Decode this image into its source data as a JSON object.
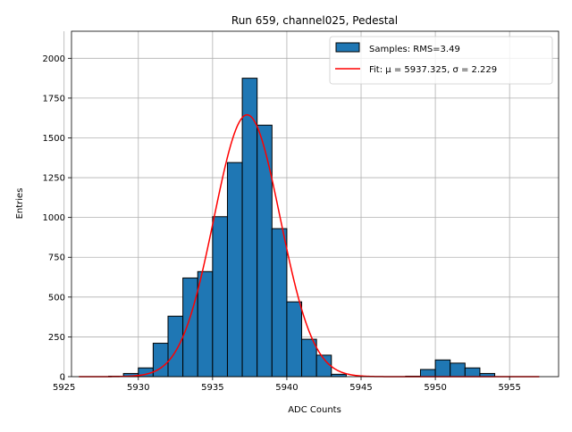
{
  "chart_data": {
    "type": "bar",
    "title": "Run 659, channel025, Pedestal",
    "xlabel": "ADC Counts",
    "ylabel": "Entries",
    "xlim": [
      5925.5,
      5958.3
    ],
    "ylim": [
      0,
      2170
    ],
    "xticks": [
      5925,
      5930,
      5935,
      5940,
      5945,
      5950,
      5955
    ],
    "yticks": [
      0,
      250,
      500,
      750,
      1000,
      1250,
      1500,
      1750,
      2000
    ],
    "grid": true,
    "legend_position": "top-right",
    "colors": {
      "bars": "#1f77b4",
      "bar_edge": "#000000",
      "fit": "#ff0000",
      "grid": "#b0b0b0"
    },
    "series": [
      {
        "name": "Samples: RMS=3.49",
        "type": "histogram",
        "bin_width": 1,
        "x": [
          5926,
          5927,
          5928,
          5929,
          5930,
          5931,
          5932,
          5933,
          5934,
          5935,
          5936,
          5937,
          5938,
          5939,
          5940,
          5941,
          5942,
          5943,
          5944,
          5945,
          5946,
          5947,
          5948,
          5949,
          5950,
          5951,
          5952,
          5953
        ],
        "values": [
          0,
          0,
          3,
          20,
          55,
          210,
          380,
          620,
          660,
          1005,
          1345,
          1875,
          1580,
          930,
          470,
          235,
          135,
          15,
          0,
          0,
          0,
          0,
          3,
          45,
          105,
          85,
          55,
          20
        ]
      },
      {
        "name": "Fit: μ = 5937.325, σ = 2.229",
        "type": "line",
        "function": "gaussian",
        "mu": 5937.325,
        "sigma": 2.229,
        "amplitude": 1645,
        "x_range": [
          5926,
          5957
        ]
      }
    ]
  }
}
